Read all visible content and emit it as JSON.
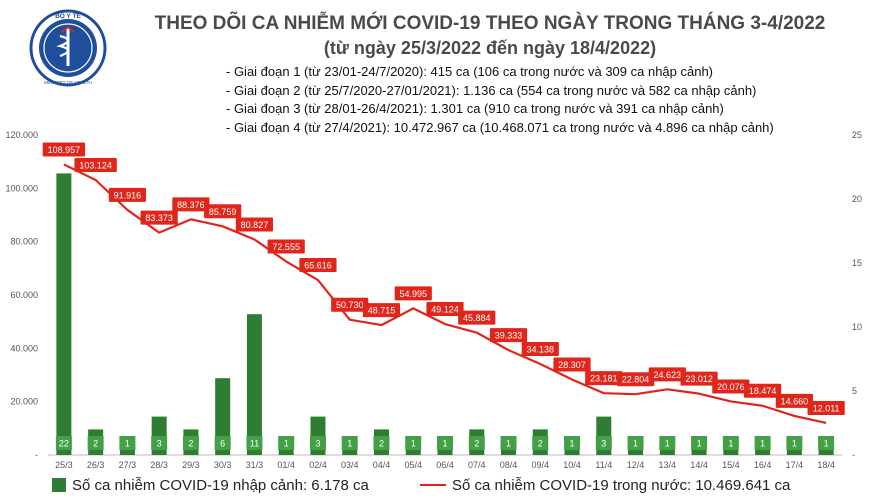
{
  "header": {
    "logo_text": "BỘ Y TẾ",
    "logo_caption": "MINISTRY OF HEALTH",
    "title": "THEO DÕI CA NHIỄM MỚI COVID-19 THEO NGÀY TRONG THÁNG 3-4/2022",
    "subtitle": "(từ ngày 25/3/2022 đến ngày 18/4/2022)"
  },
  "phases": [
    "- Giai đoạn 1 (từ 23/01-24/7/2020): 415 ca (106 ca trong nước và 309 ca nhập cảnh)",
    "- Giai đoạn 2 (từ 25/7/2020-27/01/2021): 1.136 ca (554 ca trong nước và 582 ca nhập cảnh)",
    "- Giai đoạn 3 (từ 28/01-26/4/2021): 1.301 ca (910 ca trong nước và 391 ca nhập cảnh)",
    "- Giai đoạn 4 (từ 27/4/2021): 10.472.967 ca (10.468.071 ca trong nước và 4.896 ca nhập cảnh)"
  ],
  "legend": {
    "bar_label": "Số ca nhiễm COVID-19 nhập cảnh: 6.178 ca",
    "line_label": "Số ca nhiễm COVID-19 trong nước: 10.469.641 ca"
  },
  "colors": {
    "bar": "#2e7d32",
    "line": "#e0261b",
    "label_bg": "#e0261b",
    "bar_label_bg": "#43a047"
  },
  "chart_data": {
    "type": "bar+line",
    "categories": [
      "25/3",
      "26/3",
      "27/3",
      "28/3",
      "29/3",
      "30/3",
      "31/3",
      "01/4",
      "02/4",
      "03/4",
      "04/4",
      "05/4",
      "06/4",
      "07/4",
      "08/4",
      "09/4",
      "10/4",
      "11/4",
      "12/4",
      "13/4",
      "14/4",
      "15/4",
      "16/4",
      "17/4",
      "18/4"
    ],
    "series": [
      {
        "name": "Số ca nhiễm COVID-19 nhập cảnh",
        "type": "bar",
        "axis": "right",
        "values": [
          22,
          2,
          1,
          3,
          2,
          6,
          11,
          1,
          3,
          1,
          2,
          1,
          1,
          2,
          1,
          2,
          1,
          3,
          1,
          1,
          1,
          1,
          1,
          1,
          1
        ]
      },
      {
        "name": "Số ca nhiễm COVID-19 trong nước",
        "type": "line",
        "axis": "left",
        "values": [
          108957,
          103124,
          91916,
          83373,
          88376,
          85759,
          80827,
          72555,
          65616,
          50730,
          48715,
          54995,
          49124,
          45884,
          39333,
          34138,
          28307,
          23181,
          22804,
          24623,
          23012,
          20076,
          18474,
          14660,
          12011
        ],
        "labels": [
          "108.957",
          "103.124",
          "91.916",
          "83.373",
          "88.376",
          "85.759",
          "80.827",
          "72.555",
          "65.616",
          "50.730",
          "48.715",
          "54.995",
          "49.124",
          "45.884",
          "39.333",
          "34.138",
          "28.307",
          "23.181",
          "22.804",
          "24.623",
          "23.012",
          "20.076",
          "18.474",
          "14.660",
          "12.011"
        ]
      }
    ],
    "y_left": {
      "min": 0,
      "max": 120000,
      "ticks": [
        "-",
        "20.000",
        "40.000",
        "60.000",
        "80.000",
        "100.000",
        "120.000"
      ]
    },
    "y_right": {
      "min": 0,
      "max": 25,
      "ticks": [
        "-",
        "5",
        "10",
        "15",
        "20",
        "25"
      ]
    },
    "grid": false,
    "legend_position": "bottom"
  }
}
